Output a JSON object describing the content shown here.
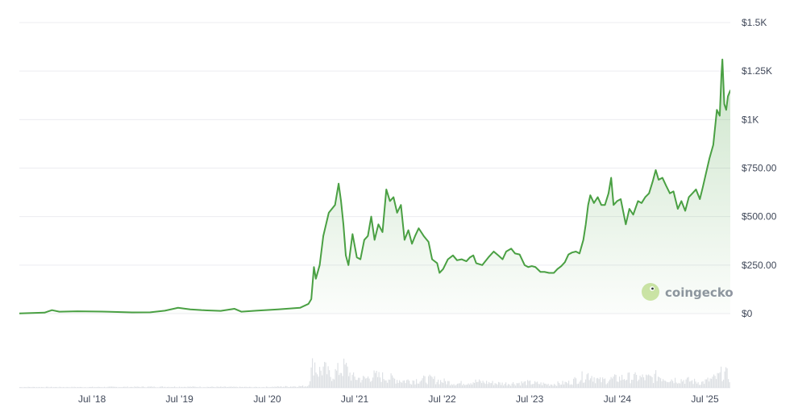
{
  "colors": {
    "line": "#4aa043",
    "area_top": "#4aa043",
    "grid": "#ececf0",
    "axis_text": "#3f4758",
    "volume": "#d6d9df",
    "watermark_bg": "#cfe6a8",
    "watermark_text": "#8f95a1"
  },
  "watermark": {
    "text": "coingecko",
    "icon": "gecko-icon"
  },
  "chart_data": {
    "type": "area",
    "ylim": [
      0,
      1500
    ],
    "y_ticks": [
      {
        "value": 0,
        "label": "$0"
      },
      {
        "value": 250,
        "label": "$250.00"
      },
      {
        "value": 500,
        "label": "$500.00"
      },
      {
        "value": 750,
        "label": "$750.00"
      },
      {
        "value": 1000,
        "label": "$1K"
      },
      {
        "value": 1250,
        "label": "$1.25K"
      },
      {
        "value": 1500,
        "label": "$1.5K"
      }
    ],
    "xlim": [
      "2017-09-01",
      "2025-10-15"
    ],
    "x_ticks": [
      {
        "date": "2018-07-01",
        "label": "Jul '18"
      },
      {
        "date": "2019-07-01",
        "label": "Jul '19"
      },
      {
        "date": "2020-07-01",
        "label": "Jul '20"
      },
      {
        "date": "2021-07-01",
        "label": "Jul '21"
      },
      {
        "date": "2022-07-01",
        "label": "Jul '22"
      },
      {
        "date": "2023-07-01",
        "label": "Jul '23"
      },
      {
        "date": "2024-07-01",
        "label": "Jul '24"
      },
      {
        "date": "2025-07-01",
        "label": "Jul '25"
      }
    ],
    "grid": true,
    "price": [
      [
        "2017-09-01",
        1
      ],
      [
        "2017-12-15",
        5
      ],
      [
        "2018-01-15",
        18
      ],
      [
        "2018-02-15",
        10
      ],
      [
        "2018-05-01",
        12
      ],
      [
        "2018-09-01",
        10
      ],
      [
        "2018-12-15",
        6
      ],
      [
        "2019-03-01",
        7
      ],
      [
        "2019-05-01",
        15
      ],
      [
        "2019-06-25",
        30
      ],
      [
        "2019-08-15",
        22
      ],
      [
        "2019-10-01",
        18
      ],
      [
        "2019-12-20",
        14
      ],
      [
        "2020-02-15",
        25
      ],
      [
        "2020-03-15",
        10
      ],
      [
        "2020-05-15",
        15
      ],
      [
        "2020-08-15",
        22
      ],
      [
        "2020-11-15",
        30
      ],
      [
        "2020-12-20",
        50
      ],
      [
        "2021-01-01",
        75
      ],
      [
        "2021-01-12",
        240
      ],
      [
        "2021-01-20",
        180
      ],
      [
        "2021-02-05",
        250
      ],
      [
        "2021-02-20",
        400
      ],
      [
        "2021-03-15",
        520
      ],
      [
        "2021-04-10",
        560
      ],
      [
        "2021-04-25",
        670
      ],
      [
        "2021-05-05",
        580
      ],
      [
        "2021-05-15",
        460
      ],
      [
        "2021-05-25",
        300
      ],
      [
        "2021-06-05",
        250
      ],
      [
        "2021-06-22",
        410
      ],
      [
        "2021-07-10",
        290
      ],
      [
        "2021-07-25",
        280
      ],
      [
        "2021-08-10",
        380
      ],
      [
        "2021-08-25",
        400
      ],
      [
        "2021-09-08",
        500
      ],
      [
        "2021-09-22",
        380
      ],
      [
        "2021-10-08",
        460
      ],
      [
        "2021-10-25",
        420
      ],
      [
        "2021-11-10",
        640
      ],
      [
        "2021-11-25",
        580
      ],
      [
        "2021-12-10",
        600
      ],
      [
        "2021-12-25",
        520
      ],
      [
        "2022-01-10",
        560
      ],
      [
        "2022-01-25",
        380
      ],
      [
        "2022-02-10",
        430
      ],
      [
        "2022-02-25",
        360
      ],
      [
        "2022-03-10",
        400
      ],
      [
        "2022-03-25",
        440
      ],
      [
        "2022-04-15",
        400
      ],
      [
        "2022-05-05",
        370
      ],
      [
        "2022-05-20",
        280
      ],
      [
        "2022-06-10",
        260
      ],
      [
        "2022-06-20",
        210
      ],
      [
        "2022-07-05",
        230
      ],
      [
        "2022-07-25",
        280
      ],
      [
        "2022-08-15",
        300
      ],
      [
        "2022-09-01",
        275
      ],
      [
        "2022-09-20",
        280
      ],
      [
        "2022-10-10",
        270
      ],
      [
        "2022-10-25",
        290
      ],
      [
        "2022-11-08",
        300
      ],
      [
        "2022-11-20",
        260
      ],
      [
        "2022-12-15",
        250
      ],
      [
        "2023-01-10",
        290
      ],
      [
        "2023-02-01",
        320
      ],
      [
        "2023-02-20",
        300
      ],
      [
        "2023-03-10",
        280
      ],
      [
        "2023-03-25",
        320
      ],
      [
        "2023-04-15",
        335
      ],
      [
        "2023-05-01",
        310
      ],
      [
        "2023-05-20",
        305
      ],
      [
        "2023-06-10",
        250
      ],
      [
        "2023-06-25",
        240
      ],
      [
        "2023-07-10",
        245
      ],
      [
        "2023-07-25",
        240
      ],
      [
        "2023-08-15",
        215
      ],
      [
        "2023-09-01",
        215
      ],
      [
        "2023-09-20",
        210
      ],
      [
        "2023-10-10",
        210
      ],
      [
        "2023-10-25",
        230
      ],
      [
        "2023-11-10",
        245
      ],
      [
        "2023-11-25",
        265
      ],
      [
        "2023-12-10",
        305
      ],
      [
        "2023-12-25",
        315
      ],
      [
        "2024-01-10",
        320
      ],
      [
        "2024-01-25",
        310
      ],
      [
        "2024-02-10",
        380
      ],
      [
        "2024-02-20",
        460
      ],
      [
        "2024-03-01",
        560
      ],
      [
        "2024-03-10",
        610
      ],
      [
        "2024-03-25",
        570
      ],
      [
        "2024-04-10",
        600
      ],
      [
        "2024-04-25",
        560
      ],
      [
        "2024-05-10",
        560
      ],
      [
        "2024-05-25",
        620
      ],
      [
        "2024-06-05",
        700
      ],
      [
        "2024-06-15",
        560
      ],
      [
        "2024-06-30",
        580
      ],
      [
        "2024-07-15",
        590
      ],
      [
        "2024-08-05",
        460
      ],
      [
        "2024-08-20",
        540
      ],
      [
        "2024-09-05",
        510
      ],
      [
        "2024-09-25",
        580
      ],
      [
        "2024-10-10",
        570
      ],
      [
        "2024-10-25",
        600
      ],
      [
        "2024-11-10",
        620
      ],
      [
        "2024-11-25",
        680
      ],
      [
        "2024-12-08",
        740
      ],
      [
        "2024-12-20",
        690
      ],
      [
        "2025-01-05",
        700
      ],
      [
        "2025-01-20",
        660
      ],
      [
        "2025-02-05",
        620
      ],
      [
        "2025-02-20",
        630
      ],
      [
        "2025-03-10",
        540
      ],
      [
        "2025-03-25",
        580
      ],
      [
        "2025-04-10",
        530
      ],
      [
        "2025-04-25",
        600
      ],
      [
        "2025-05-10",
        620
      ],
      [
        "2025-05-25",
        640
      ],
      [
        "2025-06-10",
        590
      ],
      [
        "2025-06-22",
        650
      ],
      [
        "2025-07-05",
        720
      ],
      [
        "2025-07-20",
        800
      ],
      [
        "2025-08-05",
        870
      ],
      [
        "2025-08-20",
        1050
      ],
      [
        "2025-09-01",
        1020
      ],
      [
        "2025-09-08",
        1230
      ],
      [
        "2025-09-12",
        1310
      ],
      [
        "2025-09-20",
        1080
      ],
      [
        "2025-09-28",
        1050
      ],
      [
        "2025-10-05",
        1120
      ],
      [
        "2025-10-15",
        1150
      ]
    ],
    "volume": [
      [
        "2017-09-01",
        0.02
      ],
      [
        "2018-06-01",
        0.02
      ],
      [
        "2019-06-01",
        0.03
      ],
      [
        "2020-06-01",
        0.02
      ],
      [
        "2020-12-15",
        0.05
      ],
      [
        "2021-01-10",
        0.8
      ],
      [
        "2021-01-25",
        0.45
      ],
      [
        "2021-02-20",
        0.55
      ],
      [
        "2021-03-20",
        0.35
      ],
      [
        "2021-04-25",
        0.5
      ],
      [
        "2021-05-20",
        0.6
      ],
      [
        "2021-06-20",
        0.3
      ],
      [
        "2021-08-10",
        0.25
      ],
      [
        "2021-09-10",
        0.35
      ],
      [
        "2021-11-10",
        0.3
      ],
      [
        "2022-01-20",
        0.2
      ],
      [
        "2022-05-15",
        0.25
      ],
      [
        "2022-06-20",
        0.2
      ],
      [
        "2022-09-01",
        0.12
      ],
      [
        "2022-11-10",
        0.18
      ],
      [
        "2023-03-10",
        0.12
      ],
      [
        "2023-06-20",
        0.15
      ],
      [
        "2023-09-20",
        0.1
      ],
      [
        "2023-12-10",
        0.15
      ],
      [
        "2024-03-05",
        0.4
      ],
      [
        "2024-04-15",
        0.2
      ],
      [
        "2024-06-10",
        0.25
      ],
      [
        "2024-08-05",
        0.3
      ],
      [
        "2024-11-25",
        0.28
      ],
      [
        "2024-12-10",
        0.35
      ],
      [
        "2025-02-05",
        0.25
      ],
      [
        "2025-04-10",
        0.22
      ],
      [
        "2025-06-15",
        0.15
      ],
      [
        "2025-08-20",
        0.3
      ],
      [
        "2025-09-12",
        0.45
      ],
      [
        "2025-10-15",
        0.3
      ]
    ]
  }
}
